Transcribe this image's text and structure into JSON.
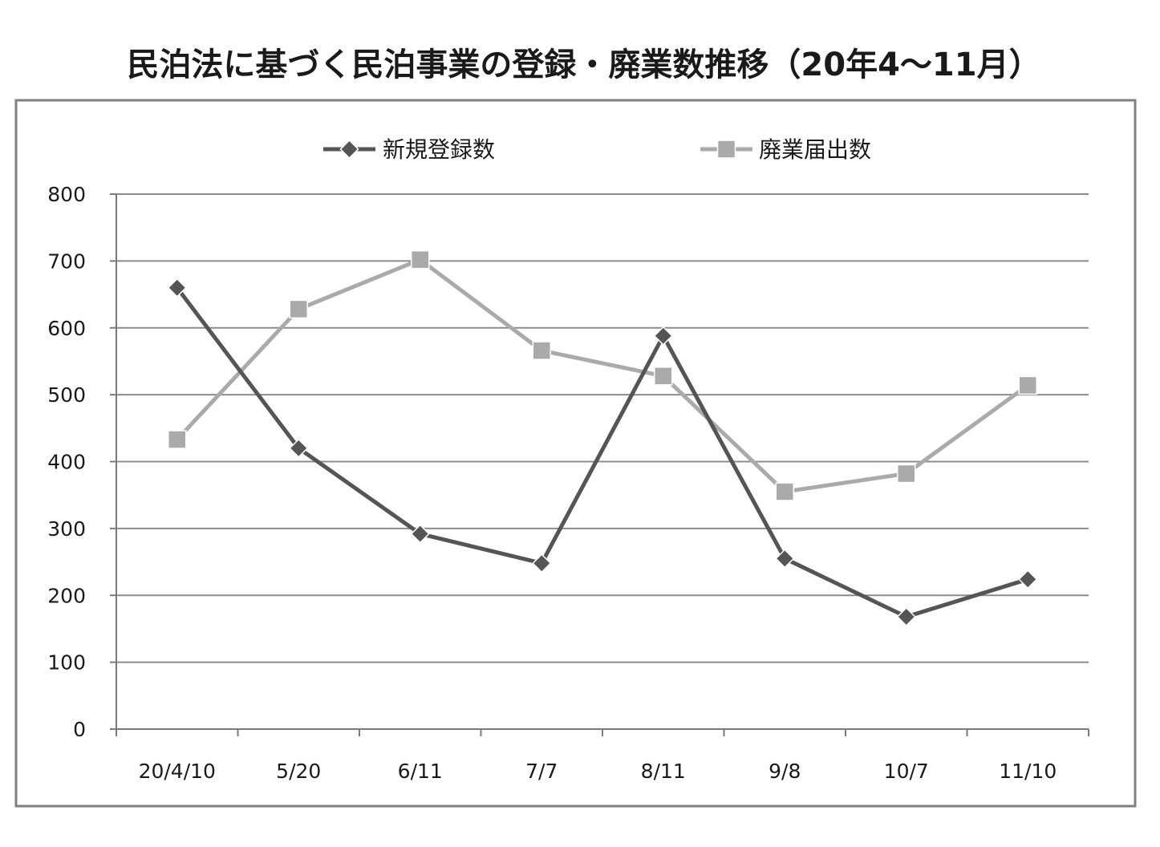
{
  "chart_data": {
    "type": "line",
    "title": "民泊法に基づく民泊事業の登録・廃業数推移（20年4～11月）",
    "categories": [
      "20/4/10",
      "5/20",
      "6/11",
      "7/7",
      "8/11",
      "9/8",
      "10/7",
      "11/10"
    ],
    "series": [
      {
        "name": "新規登録数",
        "values": [
          660,
          420,
          292,
          248,
          588,
          255,
          168,
          224
        ],
        "color": "#555555",
        "marker": "diamond"
      },
      {
        "name": "廃業届出数",
        "values": [
          433,
          628,
          702,
          566,
          528,
          355,
          382,
          514
        ],
        "color": "#aaaaaa",
        "marker": "square"
      }
    ],
    "yticks": [
      0,
      100,
      200,
      300,
      400,
      500,
      600,
      700,
      800
    ],
    "ylim": [
      0,
      800
    ],
    "grid": true,
    "legend_position": "top"
  }
}
